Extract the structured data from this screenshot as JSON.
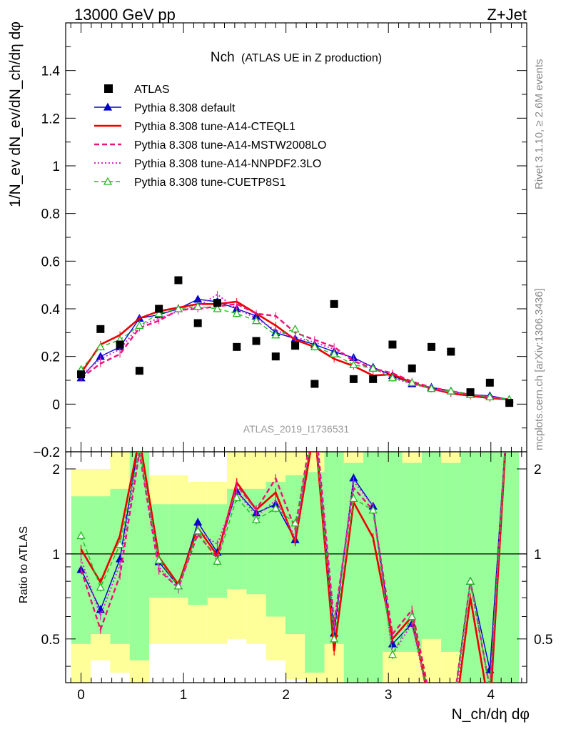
{
  "header": {
    "energy_label": "13000 GeV pp",
    "process_label": "Z+Jet"
  },
  "side_labels": {
    "rivet": "Rivet 3.1.10, ≥ 2.6M events",
    "mcplots": "mcplots.cern.ch [arXiv:1306.3436]"
  },
  "title": {
    "main": "Nch",
    "sub": "(ATLAS UE in Z production)"
  },
  "analysis_id": "ATLAS_2019_I1736531",
  "axes": {
    "ylabel_main": "1/N_ev dN_ev/dN_ch/dη dφ",
    "ylabel_ratio": "Ratio to ATLAS",
    "xlabel": "N_ch/dη dφ",
    "xticks": [
      "0",
      "1",
      "2",
      "3",
      "4"
    ],
    "yticks_main": [
      "−0.2",
      "0",
      "0.2",
      "0.4",
      "0.6",
      "0.8",
      "1",
      "1.2",
      "1.4"
    ],
    "yticks_ratio": [
      "0.5",
      "1",
      "2"
    ]
  },
  "legend": [
    {
      "label": "ATLAS",
      "color": "#000000",
      "style": "marker-square"
    },
    {
      "label": "Pythia 8.308 default",
      "color": "#0000cc",
      "style": "solid-triangle"
    },
    {
      "label": "Pythia 8.308 tune-A14-CTEQL1",
      "color": "#ee0000",
      "style": "solid-thick"
    },
    {
      "label": "Pythia 8.308 tune-A14-MSTW2008LO",
      "color": "#ee1177",
      "style": "dashed"
    },
    {
      "label": "Pythia 8.308 tune-A14-NNPDF2.3LO",
      "color": "#dd22cc",
      "style": "dotted"
    },
    {
      "label": "Pythia 8.308 tune-CUETP8S1",
      "color": "#22bb22",
      "style": "dashed-open-triangle"
    }
  ],
  "chart_data": {
    "type": "line",
    "xlim": [
      -0.15,
      4.35
    ],
    "ylim": [
      -0.2,
      1.6
    ],
    "ratio_ylim_log": [
      0.35,
      2.3
    ],
    "x": [
      0,
      0.19,
      0.38,
      0.57,
      0.76,
      0.95,
      1.14,
      1.33,
      1.52,
      1.71,
      1.9,
      2.09,
      2.28,
      2.47,
      2.66,
      2.85,
      3.04,
      3.23,
      3.42,
      3.61,
      3.8,
      3.99,
      4.18
    ],
    "atlas": [
      0.125,
      0.315,
      0.25,
      0.14,
      0.4,
      0.52,
      0.34,
      0.425,
      0.24,
      0.265,
      0.2,
      0.245,
      0.085,
      0.42,
      0.105,
      0.105,
      0.25,
      0.15,
      0.24,
      0.22,
      0.05,
      0.09,
      0.005
    ],
    "series": [
      {
        "name": "Pythia 8.308 default",
        "color": "#0000cc",
        "values": [
          0.11,
          0.2,
          0.24,
          0.36,
          0.375,
          0.4,
          0.44,
          0.43,
          0.4,
          0.37,
          0.3,
          0.275,
          0.25,
          0.22,
          0.195,
          0.155,
          0.12,
          0.085,
          0.07,
          0.055,
          0.04,
          0.035,
          0.02
        ]
      },
      {
        "name": "Pythia 8.308 tune-A14-CTEQL1",
        "color": "#ee0000",
        "values": [
          0.13,
          0.25,
          0.29,
          0.36,
          0.39,
          0.405,
          0.42,
          0.42,
          0.43,
          0.38,
          0.33,
          0.27,
          0.24,
          0.19,
          0.16,
          0.12,
          0.125,
          0.09,
          0.065,
          0.045,
          0.035,
          0.025,
          0.02
        ]
      },
      {
        "name": "Pythia 8.308 tune-A14-MSTW2008LO",
        "color": "#ee1177",
        "values": [
          0.11,
          0.17,
          0.21,
          0.32,
          0.35,
          0.395,
          0.4,
          0.41,
          0.42,
          0.38,
          0.37,
          0.3,
          0.27,
          0.24,
          0.18,
          0.15,
          0.13,
          0.095,
          0.07,
          0.055,
          0.04,
          0.03,
          0.02
        ]
      },
      {
        "name": "Pythia 8.308 tune-A14-NNPDF2.3LO",
        "color": "#dd22cc",
        "values": [
          0.12,
          0.19,
          0.23,
          0.33,
          0.36,
          0.39,
          0.41,
          0.46,
          0.4,
          0.36,
          0.31,
          0.28,
          0.26,
          0.23,
          0.19,
          0.155,
          0.11,
          0.085,
          0.065,
          0.05,
          0.04,
          0.03,
          0.02
        ]
      },
      {
        "name": "Pythia 8.308 tune-CUETP8S1",
        "color": "#22bb22",
        "values": [
          0.145,
          0.24,
          0.27,
          0.33,
          0.38,
          0.4,
          0.41,
          0.4,
          0.38,
          0.35,
          0.29,
          0.315,
          0.24,
          0.21,
          0.165,
          0.15,
          0.11,
          0.09,
          0.065,
          0.055,
          0.04,
          0.03,
          0.02
        ]
      }
    ],
    "grid": false,
    "legend_position": "top-left"
  }
}
